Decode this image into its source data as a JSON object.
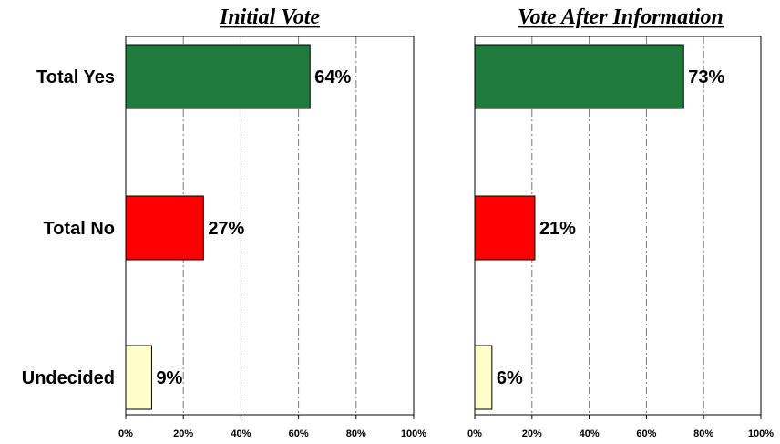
{
  "chart_data": [
    {
      "type": "bar",
      "orientation": "horizontal",
      "title": "Initial Vote",
      "categories": [
        "Total Yes",
        "Total No",
        "Undecided"
      ],
      "values": [
        64,
        27,
        9
      ],
      "value_labels": [
        "64%",
        "27%",
        "9%"
      ],
      "colors": [
        "#217a3e",
        "#ff0000",
        "#ffffcc"
      ],
      "xlim": [
        0,
        100
      ],
      "x_ticks": [
        0,
        20,
        40,
        60,
        80,
        100
      ],
      "x_tick_labels": [
        "0%",
        "20%",
        "40%",
        "60%",
        "80%",
        "100%"
      ],
      "grid": true
    },
    {
      "type": "bar",
      "orientation": "horizontal",
      "title": "Vote After Information",
      "categories": [
        "Total Yes",
        "Total No",
        "Undecided"
      ],
      "values": [
        73,
        21,
        6
      ],
      "value_labels": [
        "73%",
        "21%",
        "6%"
      ],
      "colors": [
        "#217a3e",
        "#ff0000",
        "#ffffcc"
      ],
      "xlim": [
        0,
        100
      ],
      "x_ticks": [
        0,
        20,
        40,
        60,
        80,
        100
      ],
      "x_tick_labels": [
        "0%",
        "20%",
        "40%",
        "60%",
        "80%",
        "100%"
      ],
      "grid": true
    }
  ]
}
